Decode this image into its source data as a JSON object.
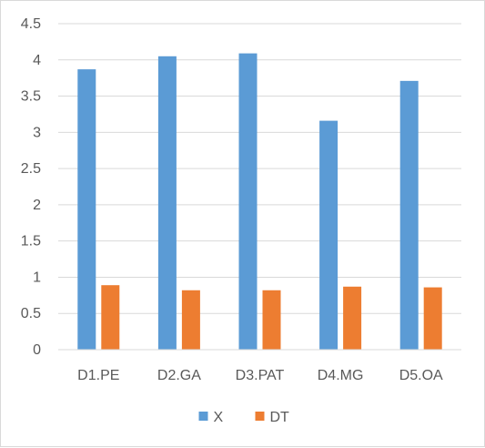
{
  "chart_data": {
    "type": "bar",
    "title": "",
    "xlabel": "",
    "ylabel": "",
    "categories": [
      "D1.PE",
      "D2.GA",
      "D3.PAT",
      "D4.MG",
      "D5.OA"
    ],
    "series": [
      {
        "name": "X",
        "values": [
          3.87,
          4.05,
          4.09,
          3.16,
          3.71
        ],
        "color": "#5b9bd5"
      },
      {
        "name": "DT",
        "values": [
          0.89,
          0.82,
          0.82,
          0.87,
          0.86
        ],
        "color": "#ed7d31"
      }
    ],
    "ylim": [
      0,
      4.5
    ],
    "yticks": [
      "0",
      "0.5",
      "1",
      "1.5",
      "2",
      "2.5",
      "3",
      "3.5",
      "4",
      "4.5"
    ],
    "grid": true,
    "legend": "bottom-center"
  }
}
